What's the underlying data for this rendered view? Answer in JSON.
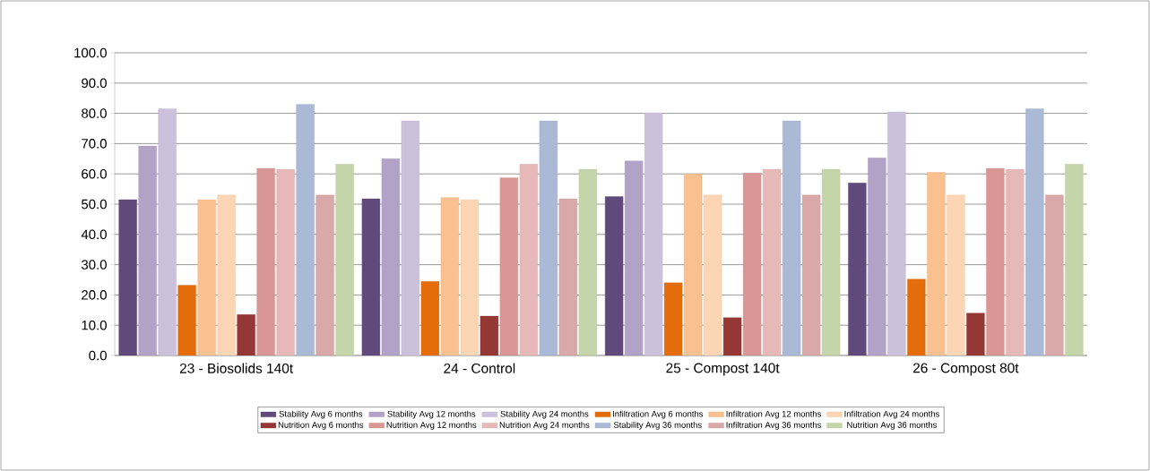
{
  "chart_data": {
    "type": "bar",
    "categories": [
      "23 - Biosolids 140t",
      "24 - Control",
      "25 - Compost 140t",
      "26 - Compost 80t"
    ],
    "ylim": [
      0,
      100
    ],
    "yticks": [
      {
        "value": 0,
        "label": "0.0"
      },
      {
        "value": 10,
        "label": "10.0"
      },
      {
        "value": 20,
        "label": "20.0"
      },
      {
        "value": 30,
        "label": "30.0"
      },
      {
        "value": 40,
        "label": "40.0"
      },
      {
        "value": 50,
        "label": "50.0"
      },
      {
        "value": 60,
        "label": "60.0"
      },
      {
        "value": 70,
        "label": "70.0"
      },
      {
        "value": 80,
        "label": "80.0"
      },
      {
        "value": 90,
        "label": "90.0"
      },
      {
        "value": 100,
        "label": "100.0"
      }
    ],
    "grid": "y",
    "legend": "bottom",
    "series": [
      {
        "name": "Stability Avg 6 months",
        "color": "#604a7b",
        "values": [
          51.5,
          51.8,
          52.5,
          57.0
        ]
      },
      {
        "name": "Stability Avg 12 months",
        "color": "#b3a2c7",
        "values": [
          69.2,
          65.0,
          64.3,
          65.3
        ]
      },
      {
        "name": "Stability Avg 24 months",
        "color": "#ccc1da",
        "values": [
          81.5,
          77.5,
          80.2,
          80.5
        ]
      },
      {
        "name": "Infiltration Avg 6 months",
        "color": "#e46c0a",
        "values": [
          23.2,
          24.5,
          24.0,
          25.2
        ]
      },
      {
        "name": "Infiltration Avg 12 months",
        "color": "#fac090",
        "values": [
          51.5,
          52.2,
          60.0,
          60.6
        ]
      },
      {
        "name": "Infiltration Avg 24 months",
        "color": "#fcd5b5",
        "values": [
          53.0,
          51.5,
          53.0,
          53.0
        ]
      },
      {
        "name": "Nutrition Avg 6 months",
        "color": "#953735",
        "values": [
          13.5,
          13.0,
          12.5,
          14.0
        ]
      },
      {
        "name": "Nutrition Avg 12 months",
        "color": "#d99694",
        "values": [
          61.8,
          58.7,
          60.3,
          61.8
        ]
      },
      {
        "name": "Nutrition Avg 24 months",
        "color": "#e6b9b8",
        "values": [
          61.5,
          63.2,
          61.5,
          61.5
        ]
      },
      {
        "name": "Stability Avg 36 months",
        "color": "#a9b9d6",
        "values": [
          83.0,
          77.5,
          77.5,
          81.5
        ]
      },
      {
        "name": "Infiltration Avg 36 months",
        "color": "#d9a8a8",
        "values": [
          53.0,
          51.8,
          53.0,
          53.0
        ]
      },
      {
        "name": "Nutrition Avg 36 months",
        "color": "#c4d6a9",
        "values": [
          63.2,
          61.5,
          61.5,
          63.2
        ]
      }
    ]
  }
}
